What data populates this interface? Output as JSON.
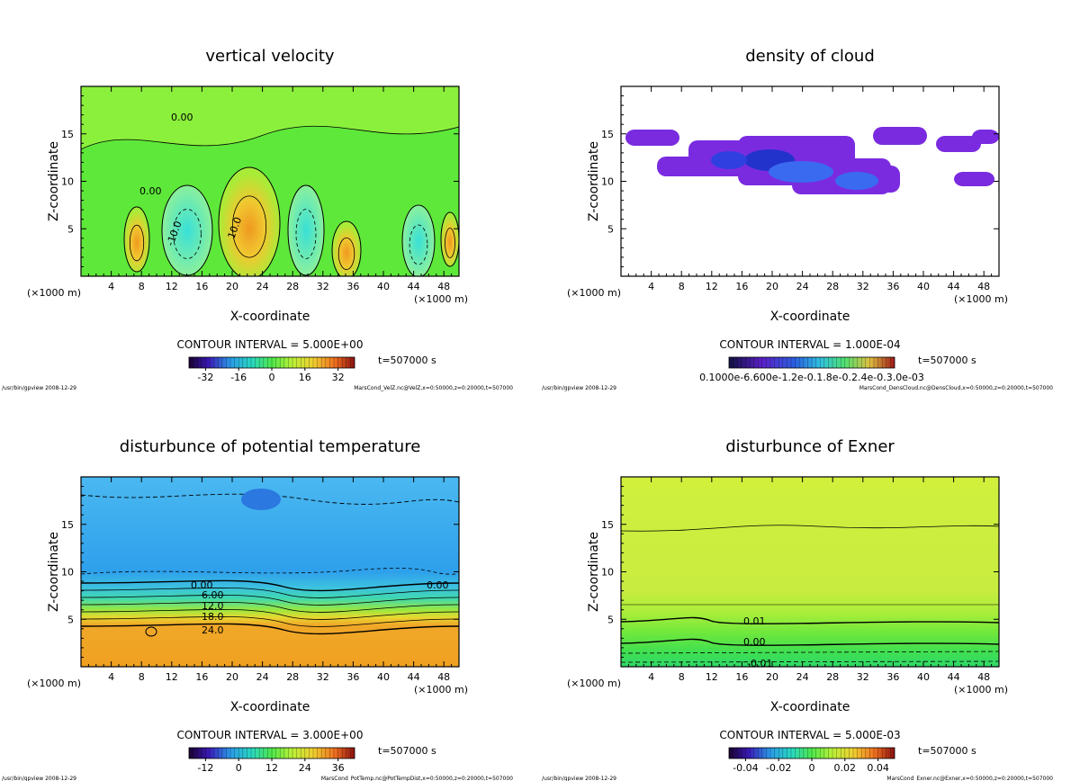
{
  "colors": {
    "bg": "#ffffff",
    "frame": "#000000",
    "green": "#5ee83a",
    "green_light": "#8bf03c",
    "green_pale": "#b0f05a",
    "cyan": "#57e8d8",
    "cyan_light": "#9ef0c8",
    "yellow_green": "#d6f040",
    "orange": "#f0a020",
    "blue_sky": "#3ab0f0",
    "blue_light": "#5cc8f8",
    "teal": "#38d0a8",
    "purple": "#7a2be0",
    "blue_deep": "#2233cc",
    "lime": "#c8f03c"
  },
  "chart_data": [
    {
      "type": "heatmap",
      "title": "vertical velocity",
      "xlabel": "X-coordinate",
      "ylabel": "Z-coordinate",
      "x_unit": "(×1000 m)",
      "xlim": [
        0,
        50
      ],
      "ylim": [
        0,
        20
      ],
      "xticks": [
        "4",
        "8",
        "12",
        "16",
        "20",
        "24",
        "28",
        "32",
        "36",
        "40",
        "44",
        "48"
      ],
      "yticks": [
        "5",
        "10",
        "15"
      ],
      "contour_labels": [
        "0.00",
        "-10.0",
        "10.0",
        "0.00"
      ],
      "contour_interval": "CONTOUR INTERVAL = 5.000E+00",
      "time": "t=507000 s",
      "colorbar": {
        "min": -40,
        "max": 40,
        "ticks": [
          "-32",
          "-16",
          "0",
          "16",
          "32"
        ]
      },
      "footer_left": "/usr/bin/gpview  2008-12-29",
      "footer_right": "MarsCond_VelZ.nc@VelZ,x=0:50000,z=0:20000,t=507000"
    },
    {
      "type": "heatmap",
      "title": "density of cloud",
      "xlabel": "X-coordinate",
      "ylabel": "Z-coordinate",
      "x_unit": "(×1000 m)",
      "xlim": [
        0,
        50
      ],
      "ylim": [
        0,
        20
      ],
      "xticks": [
        "4",
        "8",
        "12",
        "16",
        "20",
        "24",
        "28",
        "32",
        "36",
        "40",
        "44",
        "48"
      ],
      "yticks": [
        "5",
        "10",
        "15"
      ],
      "contour_labels": [],
      "contour_interval": "CONTOUR INTERVAL = 1.000E-04",
      "time": "t=507000 s",
      "colorbar": {
        "min": 0,
        "max": 0.001,
        "ticks": [
          "0.1000e-6.600e-1.2e-0.1.8e-0.2.4e-0.3.0e-03"
        ]
      },
      "footer_left": "/usr/bin/gpview  2008-12-29",
      "footer_right": "MarsCond_DensCloud.nc@DensCloud,x=0:50000,z=0:20000,t=507000"
    },
    {
      "type": "heatmap",
      "title": "disturbunce of potential temperature",
      "xlabel": "X-coordinate",
      "ylabel": "Z-coordinate",
      "x_unit": "(×1000 m)",
      "xlim": [
        0,
        50
      ],
      "ylim": [
        0,
        20
      ],
      "xticks": [
        "4",
        "8",
        "12",
        "16",
        "20",
        "24",
        "28",
        "32",
        "36",
        "40",
        "44",
        "48"
      ],
      "yticks": [
        "5",
        "10",
        "15"
      ],
      "contour_labels": [
        "0.00",
        "6.00",
        "12.0",
        "18.0",
        "24.0",
        "0.00"
      ],
      "contour_interval": "CONTOUR INTERVAL = 3.000E+00",
      "time": "t=507000 s",
      "colorbar": {
        "min": -18,
        "max": 42,
        "ticks": [
          "-12",
          "0",
          "12",
          "24",
          "36"
        ]
      },
      "footer_left": "/usr/bin/gpview  2008-12-29",
      "footer_right": "MarsCond_PotTemp.nc@PotTempDist,x=0:50000,z=0:20000,t=507000"
    },
    {
      "type": "heatmap",
      "title": "disturbunce of Exner",
      "xlabel": "X-coordinate",
      "ylabel": "Z-coordinate",
      "x_unit": "(×1000 m)",
      "xlim": [
        0,
        50
      ],
      "ylim": [
        0,
        20
      ],
      "xticks": [
        "4",
        "8",
        "12",
        "16",
        "20",
        "24",
        "28",
        "32",
        "36",
        "40",
        "44",
        "48"
      ],
      "yticks": [
        "5",
        "10",
        "15"
      ],
      "contour_labels": [
        "0.01",
        "0.00",
        "-0.01"
      ],
      "contour_interval": "CONTOUR INTERVAL = 5.000E-03",
      "time": "t=507000 s",
      "colorbar": {
        "min": -0.05,
        "max": 0.05,
        "ticks": [
          "-0.04",
          "-0.02",
          "0",
          "0.02",
          "0.04"
        ]
      },
      "footer_left": "/usr/bin/gpview  2008-12-29",
      "footer_right": "MarsCond_Exner.nc@Exner,x=0:50000,z=0:20000,t=507000"
    }
  ]
}
